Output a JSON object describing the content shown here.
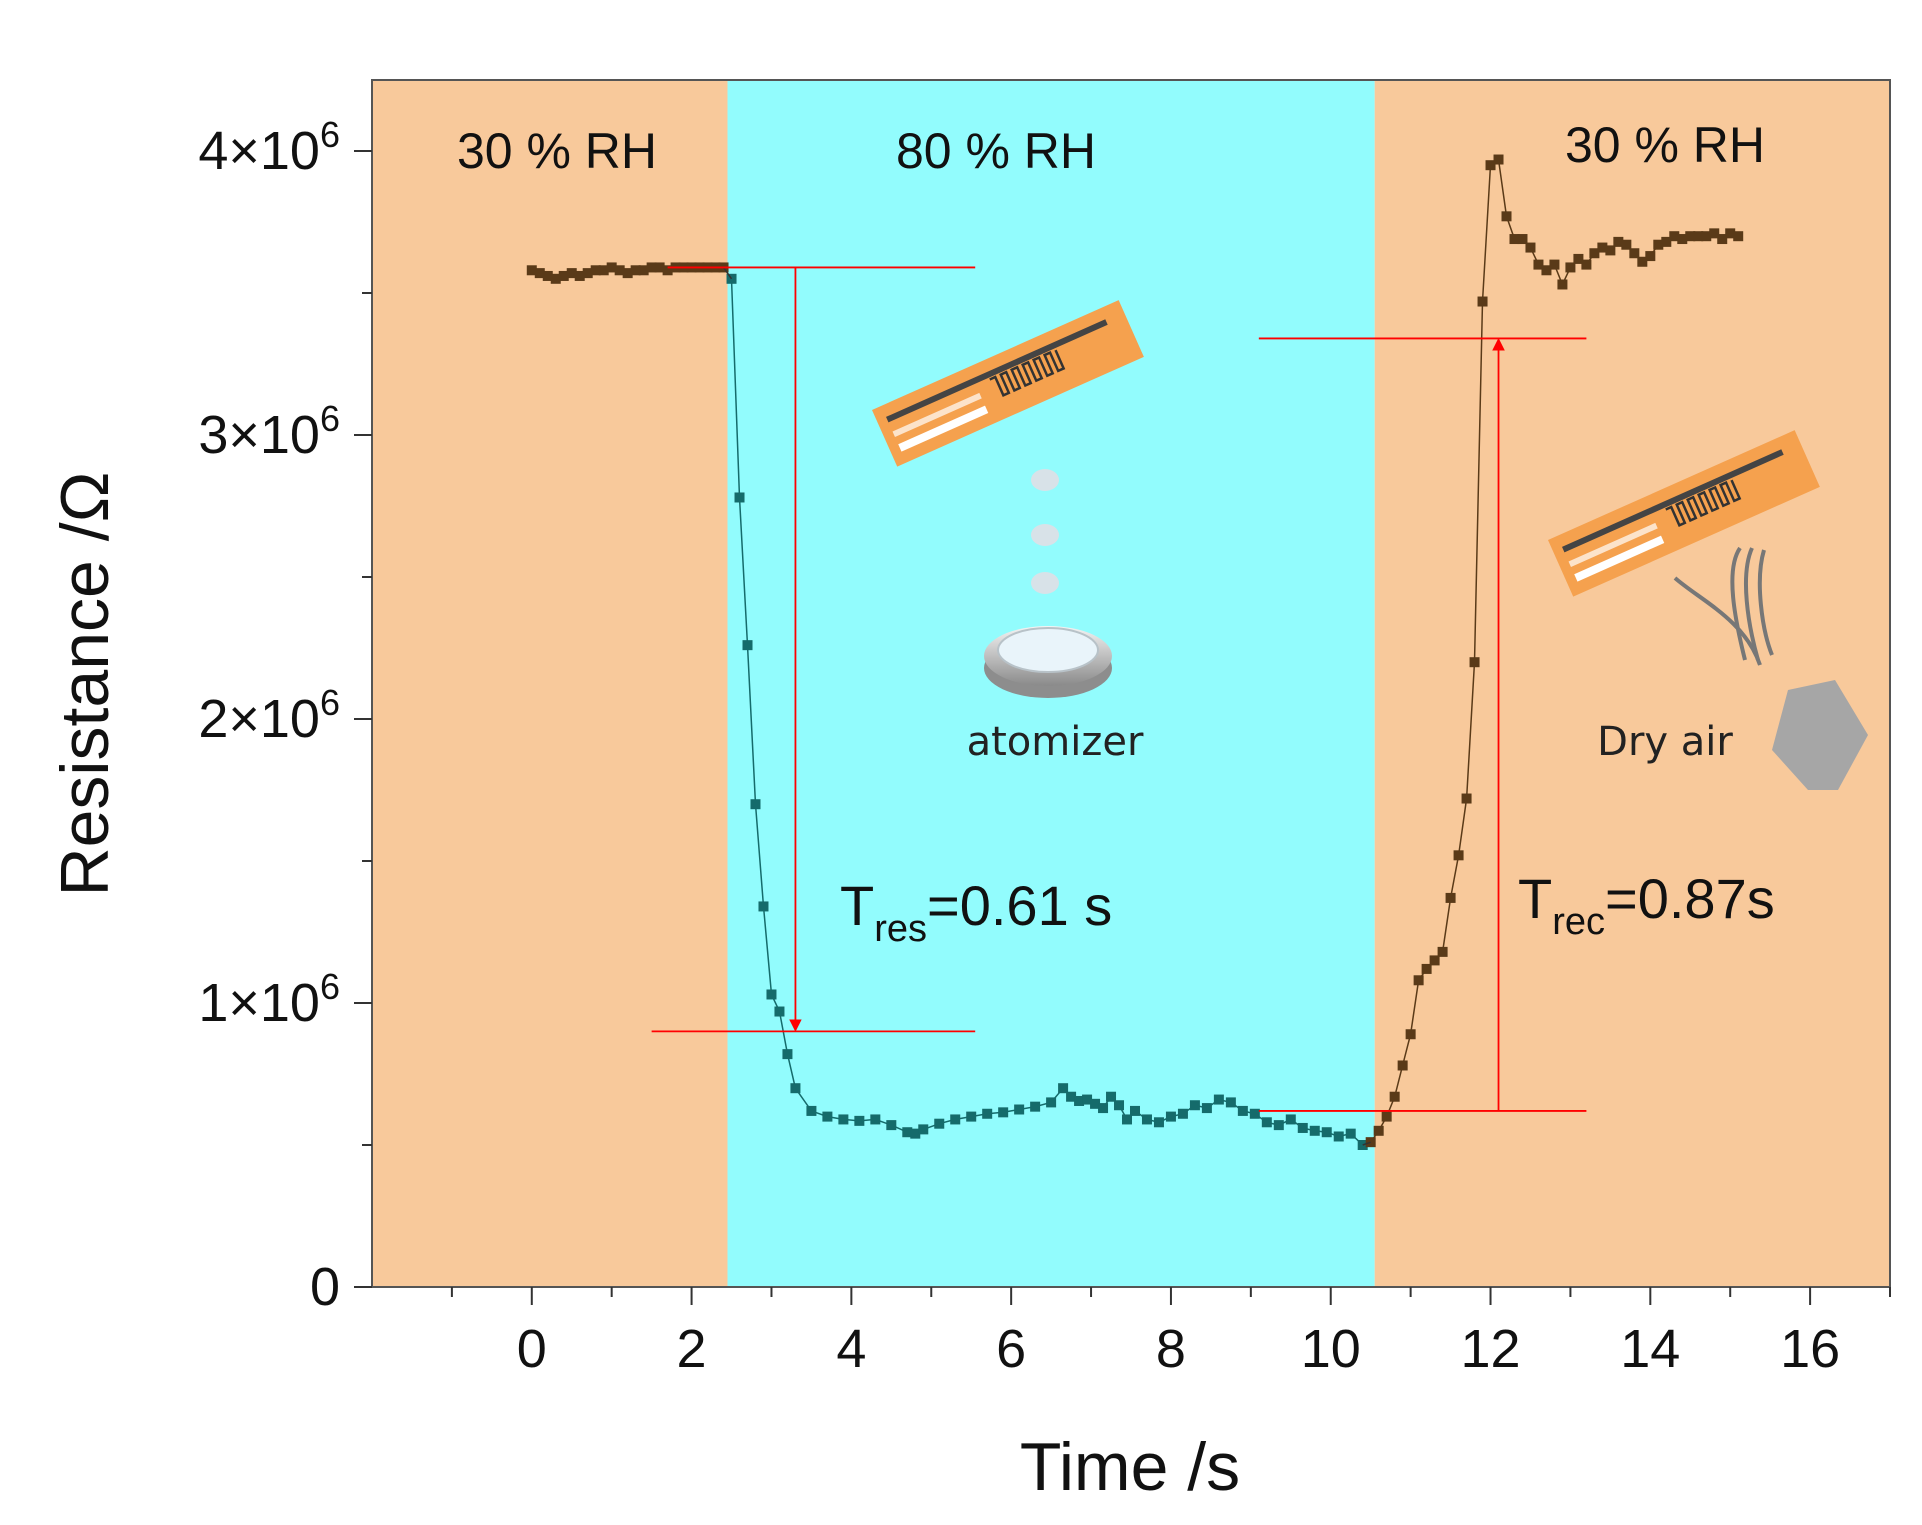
{
  "chart_data": {
    "type": "scatter",
    "title": "",
    "xlabel": "Time /s",
    "ylabel": "Resistance /Ω",
    "xlim": [
      -2,
      17
    ],
    "ylim": [
      0,
      4250000
    ],
    "x_ticks": [
      0,
      2,
      4,
      6,
      8,
      10,
      12,
      14,
      16
    ],
    "x_tick_labels": [
      "0",
      "2",
      "4",
      "6",
      "8",
      "10",
      "12",
      "14",
      "16"
    ],
    "y_ticks": [
      0,
      1000000,
      2000000,
      3000000,
      4000000
    ],
    "y_tick_labels": [
      {
        "base": "0",
        "exp": ""
      },
      {
        "base": "1×10",
        "exp": "6"
      },
      {
        "base": "2×10",
        "exp": "6"
      },
      {
        "base": "3×10",
        "exp": "6"
      },
      {
        "base": "4×10",
        "exp": "6"
      }
    ],
    "regions": [
      {
        "label": "30 % RH",
        "x_start": -2,
        "x_end": 2.45,
        "color": "#f8c99b"
      },
      {
        "label": "80 % RH",
        "x_start": 2.45,
        "x_end": 10.55,
        "color": "#92fcfd"
      },
      {
        "label": "30 % RH",
        "x_start": 10.55,
        "x_end": 17,
        "color": "#f8c99b"
      }
    ],
    "series": [
      {
        "name": "30 % RH (initial)",
        "color": "#5a3a18",
        "x": [
          0,
          0.1,
          0.2,
          0.3,
          0.4,
          0.5,
          0.6,
          0.7,
          0.8,
          0.9,
          1.0,
          1.1,
          1.2,
          1.3,
          1.4,
          1.5,
          1.6,
          1.7,
          1.8,
          1.9,
          2.0,
          2.1,
          2.2,
          2.3,
          2.4
        ],
        "y": [
          3580000,
          3570000,
          3560000,
          3550000,
          3560000,
          3570000,
          3560000,
          3570000,
          3580000,
          3580000,
          3590000,
          3580000,
          3570000,
          3580000,
          3580000,
          3590000,
          3590000,
          3580000,
          3590000,
          3590000,
          3590000,
          3590000,
          3590000,
          3590000,
          3590000
        ]
      },
      {
        "name": "80 % RH",
        "color": "#156b6b",
        "x": [
          2.5,
          2.6,
          2.7,
          2.8,
          2.9,
          3.0,
          3.1,
          3.2,
          3.3,
          3.5,
          3.7,
          3.9,
          4.1,
          4.3,
          4.5,
          4.7,
          4.8,
          4.9,
          5.1,
          5.3,
          5.5,
          5.7,
          5.9,
          6.1,
          6.3,
          6.5,
          6.65,
          6.75,
          6.85,
          6.95,
          7.05,
          7.15,
          7.25,
          7.35,
          7.45,
          7.55,
          7.7,
          7.85,
          8.0,
          8.15,
          8.3,
          8.45,
          8.6,
          8.75,
          8.9,
          9.05,
          9.2,
          9.35,
          9.5,
          9.65,
          9.8,
          9.95,
          10.1,
          10.25,
          10.4
        ],
        "y": [
          3550000,
          2780000,
          2260000,
          1700000,
          1340000,
          1030000,
          970000,
          820000,
          700000,
          620000,
          600000,
          590000,
          585000,
          590000,
          570000,
          545000,
          540000,
          555000,
          575000,
          590000,
          600000,
          610000,
          615000,
          625000,
          635000,
          650000,
          700000,
          670000,
          655000,
          660000,
          645000,
          630000,
          670000,
          640000,
          590000,
          620000,
          590000,
          580000,
          600000,
          610000,
          640000,
          630000,
          660000,
          650000,
          620000,
          610000,
          580000,
          570000,
          590000,
          560000,
          550000,
          545000,
          530000,
          540000,
          500000
        ]
      },
      {
        "name": "30 % RH (recovery)",
        "color": "#5a3a18",
        "x": [
          10.5,
          10.6,
          10.7,
          10.8,
          10.9,
          11.0,
          11.1,
          11.2,
          11.3,
          11.4,
          11.5,
          11.6,
          11.7,
          11.8,
          11.9,
          12.0,
          12.1,
          12.2,
          12.3,
          12.4,
          12.5,
          12.6,
          12.7,
          12.8,
          12.9,
          13.0,
          13.1,
          13.2,
          13.3,
          13.4,
          13.5,
          13.6,
          13.7,
          13.8,
          13.9,
          14.0,
          14.1,
          14.2,
          14.3,
          14.4,
          14.5,
          14.6,
          14.7,
          14.8,
          14.9,
          15.0,
          15.1
        ],
        "y": [
          510000,
          550000,
          600000,
          670000,
          780000,
          890000,
          1080000,
          1120000,
          1150000,
          1180000,
          1370000,
          1520000,
          1720000,
          2200000,
          3470000,
          3950000,
          3970000,
          3770000,
          3690000,
          3690000,
          3660000,
          3600000,
          3580000,
          3600000,
          3530000,
          3590000,
          3620000,
          3600000,
          3640000,
          3660000,
          3650000,
          3680000,
          3670000,
          3640000,
          3610000,
          3630000,
          3670000,
          3680000,
          3700000,
          3690000,
          3700000,
          3700000,
          3700000,
          3710000,
          3690000,
          3710000,
          3700000
        ]
      }
    ],
    "annotations": {
      "response_label": {
        "base": "T",
        "sub": "res",
        "rest": "=0.61 s"
      },
      "recovery_label": {
        "base": "T",
        "sub": "rec",
        "rest": "=0.87s"
      },
      "atomizer_label": "atomizer",
      "dry_air_label": "Dry air",
      "response_top": 3590000,
      "response_bottom": 900000,
      "response_arrow_x": 3.3,
      "recovery_bottom": 620000,
      "recovery_top": 3340000,
      "recovery_arrow_x": 12.1,
      "line_color": "#ff0000"
    }
  }
}
